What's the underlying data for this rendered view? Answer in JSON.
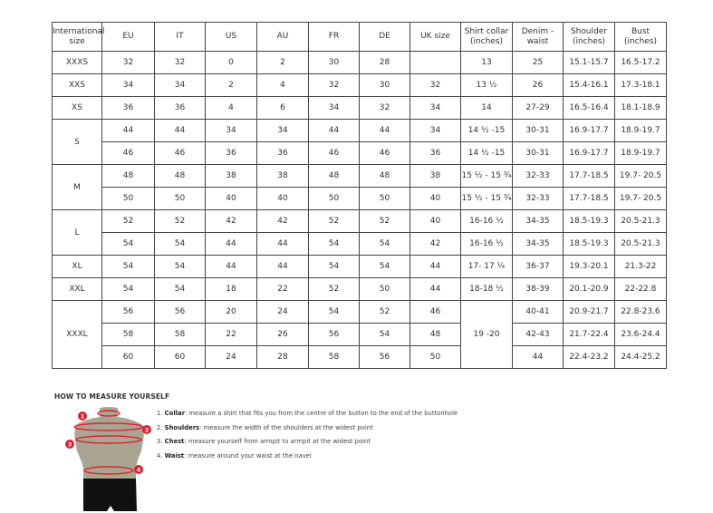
{
  "table": {
    "headers": [
      "International size",
      "EU",
      "IT",
      "US",
      "AU",
      "FR",
      "DE",
      "UK size",
      "Shirt collar (inches)",
      "Denim - waist",
      "Shoulder (inches)",
      "Bust (inches)"
    ],
    "groups": [
      {
        "size": "XXXS",
        "rows": [
          [
            "32",
            "32",
            "0",
            "2",
            "30",
            "28",
            "",
            "13",
            "25",
            "15.1-15.7",
            "16.5-17.2"
          ]
        ]
      },
      {
        "size": "XXS",
        "rows": [
          [
            "34",
            "34",
            "2",
            "4",
            "32",
            "30",
            "32",
            "13 ½",
            "26",
            "15.4-16.1",
            "17.3-18.1"
          ]
        ]
      },
      {
        "size": "XS",
        "rows": [
          [
            "36",
            "36",
            "4",
            "6",
            "34",
            "32",
            "34",
            "14",
            "27-29",
            "16.5-16.4",
            "18.1-18.9"
          ]
        ]
      },
      {
        "size": "S",
        "rows": [
          [
            "44",
            "44",
            "34",
            "34",
            "44",
            "44",
            "34",
            "14 ½ -15",
            "30-31",
            "16.9-17.7",
            "18.9-19.7"
          ],
          [
            "46",
            "46",
            "36",
            "36",
            "46",
            "46",
            "36",
            "14 ½ -15",
            "30-31",
            "16.9-17.7",
            "18.9-19.7"
          ]
        ]
      },
      {
        "size": "M",
        "rows": [
          [
            "48",
            "48",
            "38",
            "38",
            "48",
            "48",
            "38",
            "15 ½ - 15 ¾",
            "32-33",
            "17.7-18.5",
            "19.7- 20.5"
          ],
          [
            "50",
            "50",
            "40",
            "40",
            "50",
            "50",
            "40",
            "15 ½ - 15 ¾",
            "32-33",
            "17.7-18.5",
            "19.7- 20.5"
          ]
        ]
      },
      {
        "size": "L",
        "rows": [
          [
            "52",
            "52",
            "42",
            "42",
            "52",
            "52",
            "40",
            "16-16 ½",
            "34-35",
            "18.5-19.3",
            "20.5-21.3"
          ],
          [
            "54",
            "54",
            "44",
            "44",
            "54",
            "54",
            "42",
            "16-16 ½",
            "34-35",
            "18.5-19.3",
            "20.5-21.3"
          ]
        ]
      },
      {
        "size": "XL",
        "rows": [
          [
            "54",
            "54",
            "44",
            "44",
            "54",
            "54",
            "44",
            "17- 17 ¼",
            "36-37",
            "19.3-20.1",
            "21.3-22"
          ]
        ]
      },
      {
        "size": "XXL",
        "rows": [
          [
            "54",
            "54",
            "18",
            "22",
            "52",
            "50",
            "44",
            "18-18 ½",
            "38-39",
            "20.1-20.9",
            "22-22.8"
          ]
        ]
      },
      {
        "size": "XXXL",
        "collar": "19 -20",
        "rows": [
          [
            "56",
            "56",
            "20",
            "24",
            "54",
            "52",
            "46",
            "",
            "40-41",
            "20.9-21.7",
            "22.8-23.6"
          ],
          [
            "58",
            "58",
            "22",
            "26",
            "56",
            "54",
            "48",
            "",
            "42-43",
            "21.7-22.4",
            "23.6-24.4"
          ],
          [
            "60",
            "60",
            "24",
            "28",
            "58",
            "56",
            "50",
            "",
            "44",
            "22.4-23.2",
            "24.4-25.2"
          ]
        ]
      }
    ]
  },
  "measure": {
    "heading": "HOW TO MEASURE YOURSELF",
    "markers": [
      "1",
      "2",
      "3",
      "4"
    ],
    "steps": [
      {
        "num": "1.",
        "term": "Collar",
        "text": ": measure a shirt that fits you from the centre of the button to the end of the buttonhole"
      },
      {
        "num": "2.",
        "term": "Shoulders",
        "text": ": measure the width of the shoulders at the widest point"
      },
      {
        "num": "3.",
        "term": "Chest",
        "text": ": measure yourself from armpit to armpit at the widest point"
      },
      {
        "num": "4.",
        "term": "Waist",
        "text": ": measure around your waist at the navel"
      }
    ],
    "colors": {
      "accent": "#e0202f",
      "body": "#a9a592",
      "shorts": "#111111"
    }
  }
}
